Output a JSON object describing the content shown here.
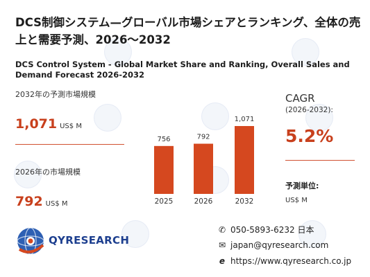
{
  "title_jp": "DCS制御システム—グローバル市場シェアとランキング、全体の売上と需要予測、2026〜2032",
  "title_en": "DCS Control System - Global Market Share and Ranking, Overall Sales and Demand Forecast 2026-2032",
  "forecast": {
    "label": "2032年の予測市場規模",
    "value": "1,071",
    "unit": "US$ M"
  },
  "current": {
    "label": "2026年の市場規模",
    "value": "792",
    "unit": "US$ M"
  },
  "cagr": {
    "label": "CAGR",
    "range": "(2026-2032):",
    "value": "5.2%"
  },
  "unit_info": {
    "label": "予測単位:",
    "value": "US$ M"
  },
  "chart_data": {
    "type": "bar",
    "categories": [
      "2025",
      "2026",
      "2032"
    ],
    "values": [
      756,
      792,
      1071
    ],
    "data_labels": [
      "756",
      "792",
      "1,071"
    ],
    "title": "",
    "xlabel": "",
    "ylabel": "",
    "color": "#d5481f"
  },
  "logo": {
    "text": "QYRESEARCH",
    "icon": "globe-icon"
  },
  "contact": {
    "phone": "050-5893-6232 日本",
    "email": "japan@qyresearch.com",
    "web": "https://www.qyresearch.co.jp",
    "phone_icon": "phone-icon",
    "email_icon": "mail-icon",
    "web_icon": "web-icon"
  }
}
